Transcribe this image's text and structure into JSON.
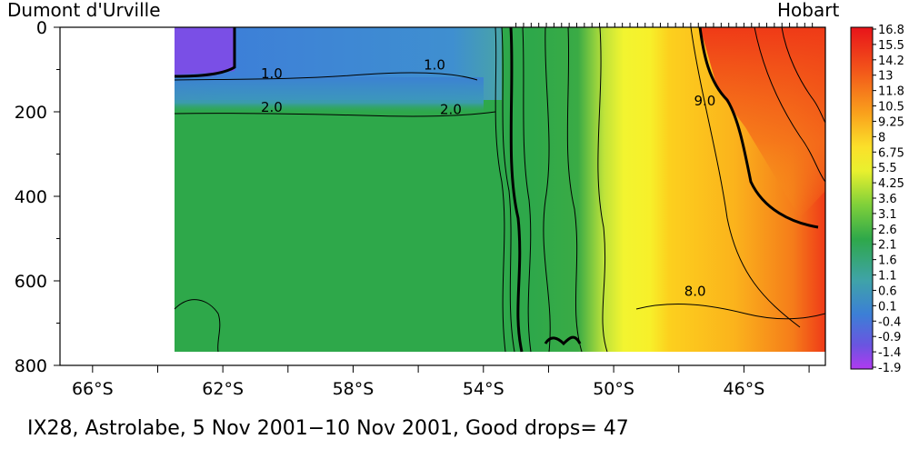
{
  "chart_data": {
    "type": "heatmap",
    "title": "",
    "left_label": "Dumont d'Urville",
    "right_label": "Hobart",
    "caption": "IX28, Astrolabe,  5 Nov 2001−10 Nov 2001, Good drops= 47",
    "xlabel": "",
    "ylabel": "",
    "x_range": [
      -67,
      -43.5
    ],
    "y_range": [
      800,
      0
    ],
    "x_ticks": [
      {
        "value": -66,
        "label": "66°S"
      },
      {
        "value": -62,
        "label": "62°S"
      },
      {
        "value": -58,
        "label": "58°S"
      },
      {
        "value": -54,
        "label": "54°S"
      },
      {
        "value": -50,
        "label": "50°S"
      },
      {
        "value": -46,
        "label": "46°S"
      }
    ],
    "x_minor_ticks": [
      -64,
      -60,
      -56,
      -52,
      -48,
      -44
    ],
    "y_ticks": [
      {
        "value": 0,
        "label": "0"
      },
      {
        "value": 200,
        "label": "200"
      },
      {
        "value": 400,
        "label": "400"
      },
      {
        "value": 600,
        "label": "600"
      },
      {
        "value": 800,
        "label": "800"
      }
    ],
    "y_minor_ticks": [
      100,
      300,
      500,
      700
    ],
    "data_extent": {
      "lat_start": -63.0,
      "lat_end": -43.9,
      "depth_max": 760
    },
    "colorbar_labels": [
      "16.8",
      "15.5",
      "14.2",
      "13",
      "11.8",
      "10.5",
      "9.25",
      "8",
      "6.75",
      "5.5",
      "4.25",
      "3.6",
      "3.1",
      "2.6",
      "2.1",
      "1.6",
      "1.1",
      "0.6",
      "0.1",
      "-0.4",
      "-0.9",
      "-1.4",
      "-1.9"
    ],
    "contour_labels": [
      {
        "text": "1.0",
        "lat": -60.5,
        "depth": 120
      },
      {
        "text": "1.0",
        "lat": -55.5,
        "depth": 100
      },
      {
        "text": "2.0",
        "lat": -60.5,
        "depth": 200
      },
      {
        "text": "2.0",
        "lat": -55.0,
        "depth": 205
      },
      {
        "text": "9.0",
        "lat": -47.2,
        "depth": 185
      },
      {
        "text": "8.0",
        "lat": -47.5,
        "depth": 635
      }
    ]
  }
}
